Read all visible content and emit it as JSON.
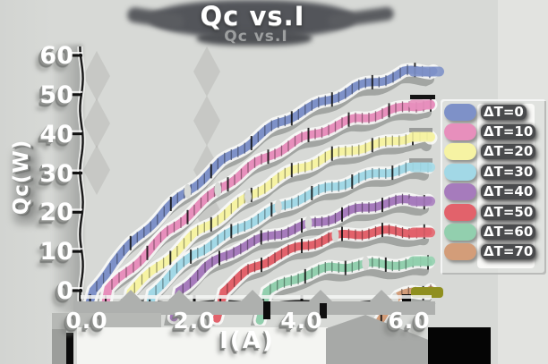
{
  "title": "Qc vs.I",
  "title_echo": "Qc vs.I",
  "axes": {
    "xlabel": "I(A)",
    "ylabel": "Qc(W)",
    "x_ticks": [
      {
        "label": "0.0",
        "value": 0
      },
      {
        "label": "2.0",
        "value": 2
      },
      {
        "label": "4.0",
        "value": 4
      },
      {
        "label": "6.0",
        "value": 6
      }
    ],
    "y_ticks": [
      {
        "label": "0",
        "value": 0
      },
      {
        "label": "10",
        "value": 10
      },
      {
        "label": "20",
        "value": 20
      },
      {
        "label": "30",
        "value": 30
      },
      {
        "label": "40",
        "value": 40
      },
      {
        "label": "50",
        "value": 50
      },
      {
        "label": "60",
        "value": 60
      }
    ]
  },
  "colors": {
    "background": "#d7d9d6",
    "background_right": "#e2e3e0",
    "shadow_gray": "#8c8e8c",
    "text": "#ffffff",
    "olive_end_bar": "#8f8f1f"
  },
  "chart_data": {
    "type": "line",
    "title": "Qc vs.I",
    "xlabel": "I(A)",
    "ylabel": "Qc(W)",
    "xlim": [
      0,
      6.6
    ],
    "ylim": [
      -8,
      62
    ],
    "x_tick_values": [
      0,
      2,
      4,
      6
    ],
    "y_tick_values": [
      0,
      10,
      20,
      30,
      40,
      50,
      60
    ],
    "grid": false,
    "legend_position": "right",
    "style": "hand-drawn sketch lines with dense error-bar hatches and heavy emboss shadows",
    "series": [
      {
        "name": "ΔT=0",
        "color": "#7e91c8",
        "points": [
          [
            0,
            -6
          ],
          [
            0.12,
            0
          ],
          [
            0.5,
            7
          ],
          [
            1,
            14
          ],
          [
            1.5,
            21
          ],
          [
            2,
            27
          ],
          [
            2.5,
            33
          ],
          [
            3,
            37.5
          ],
          [
            3.5,
            42
          ],
          [
            4,
            45.5
          ],
          [
            4.5,
            48.5
          ],
          [
            5,
            52
          ],
          [
            5.5,
            54
          ],
          [
            5.9,
            56
          ],
          [
            6.45,
            56
          ]
        ]
      },
      {
        "name": "ΔT=10",
        "color": "#e78fbc",
        "points": [
          [
            0.3,
            -7
          ],
          [
            0.4,
            0
          ],
          [
            1,
            8
          ],
          [
            1.5,
            15
          ],
          [
            2,
            21
          ],
          [
            2.5,
            26.5
          ],
          [
            3,
            31
          ],
          [
            3.5,
            35
          ],
          [
            4,
            38.5
          ],
          [
            4.5,
            41.5
          ],
          [
            5,
            44
          ],
          [
            5.5,
            45.5
          ],
          [
            6,
            47
          ],
          [
            6.4,
            47.5
          ]
        ]
      },
      {
        "name": "ΔT=20",
        "color": "#f6f3a3",
        "points": [
          [
            0.72,
            -7
          ],
          [
            0.82,
            0
          ],
          [
            1.3,
            6
          ],
          [
            2,
            14.5
          ],
          [
            2.5,
            19
          ],
          [
            3,
            23.5
          ],
          [
            3.5,
            28
          ],
          [
            4,
            31.5
          ],
          [
            4.5,
            34.5
          ],
          [
            5,
            36.5
          ],
          [
            5.5,
            37.5
          ],
          [
            6,
            39
          ],
          [
            6.4,
            39
          ]
        ]
      },
      {
        "name": "ΔT=30",
        "color": "#a2d8e6",
        "points": [
          [
            1.12,
            -7
          ],
          [
            1.22,
            0
          ],
          [
            2,
            9.5
          ],
          [
            2.5,
            13
          ],
          [
            3,
            17
          ],
          [
            3.5,
            20.5
          ],
          [
            4,
            24
          ],
          [
            4.5,
            26.5
          ],
          [
            5,
            28.5
          ],
          [
            5.5,
            30
          ],
          [
            6,
            31
          ],
          [
            6.35,
            31.5
          ]
        ]
      },
      {
        "name": "ΔT=40",
        "color": "#a67bbc",
        "points": [
          [
            1.62,
            -7
          ],
          [
            1.72,
            0
          ],
          [
            2.2,
            5.5
          ],
          [
            2.8,
            10.5
          ],
          [
            3.5,
            14.5
          ],
          [
            4,
            16.5
          ],
          [
            4.5,
            18.5
          ],
          [
            5,
            20.5
          ],
          [
            5.5,
            22
          ],
          [
            6,
            22.8
          ],
          [
            6.35,
            23
          ]
        ]
      },
      {
        "name": "ΔT=50",
        "color": "#e2626b",
        "points": [
          [
            2.42,
            -7
          ],
          [
            2.55,
            0
          ],
          [
            3,
            5
          ],
          [
            3.5,
            9
          ],
          [
            4,
            11.5
          ],
          [
            4.5,
            13.5
          ],
          [
            5,
            14.3
          ],
          [
            5.5,
            14.8
          ],
          [
            6,
            15
          ],
          [
            6.35,
            15
          ]
        ]
      },
      {
        "name": "ΔT=60",
        "color": "#92cfae",
        "points": [
          [
            3.22,
            -7
          ],
          [
            3.35,
            0
          ],
          [
            4,
            4
          ],
          [
            4.5,
            5.5
          ],
          [
            5,
            6.3
          ],
          [
            5.5,
            6.6
          ],
          [
            6,
            7
          ],
          [
            6.35,
            7.2
          ]
        ]
      },
      {
        "name": "ΔT=70",
        "color": "#d39d79",
        "points": [
          [
            5.42,
            -8
          ],
          [
            5.6,
            -4
          ],
          [
            5.8,
            -1.5
          ],
          [
            6.05,
            -0.3
          ],
          [
            6.4,
            0.2
          ]
        ]
      }
    ]
  }
}
